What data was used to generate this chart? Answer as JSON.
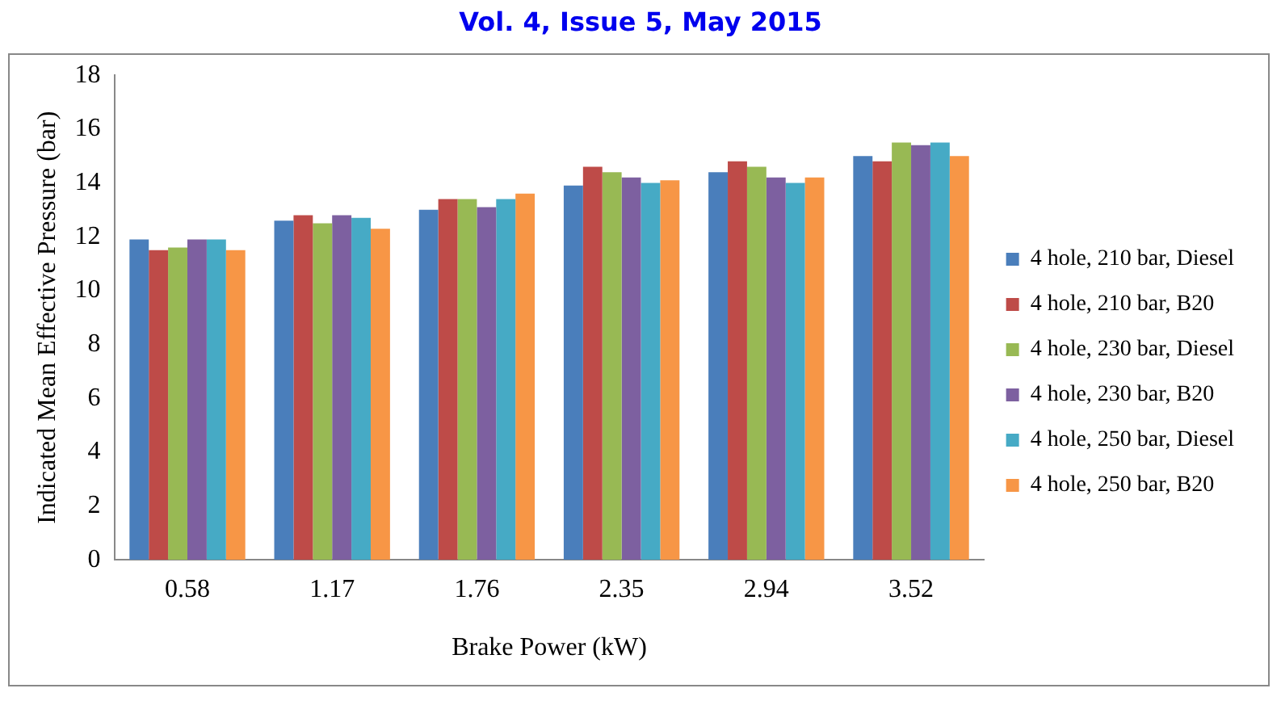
{
  "chart_data": {
    "type": "bar",
    "xlabel": "Brake Power (kW)",
    "ylabel": "Indicated Mean Effective Pressure (bar)",
    "annotations": [
      "Vol. 4, Issue 5, May 2015"
    ],
    "categories": [
      "0.58",
      "1.17",
      "1.76",
      "2.35",
      "2.94",
      "3.52"
    ],
    "series": [
      {
        "name": "4 hole, 210 bar, Diesel",
        "color": "#4a7ebb",
        "values": [
          11.9,
          12.6,
          13.0,
          13.9,
          14.4,
          15.0
        ]
      },
      {
        "name": "4 hole, 210 bar, B20",
        "color": "#be4b48",
        "values": [
          11.5,
          12.8,
          13.4,
          14.6,
          14.8,
          14.8
        ]
      },
      {
        "name": "4 hole, 230 bar, Diesel",
        "color": "#98b954",
        "values": [
          11.6,
          12.5,
          13.4,
          14.4,
          14.6,
          15.5
        ]
      },
      {
        "name": "4 hole, 230 bar, B20",
        "color": "#7d60a0",
        "values": [
          11.9,
          12.8,
          13.1,
          14.2,
          14.2,
          15.4
        ]
      },
      {
        "name": "4 hole, 250 bar, Diesel",
        "color": "#46aac5",
        "values": [
          11.9,
          12.7,
          13.4,
          14.0,
          14.0,
          15.5
        ]
      },
      {
        "name": "4 hole, 250 bar, B20",
        "color": "#f79646",
        "values": [
          11.5,
          12.3,
          13.6,
          14.1,
          14.2,
          15.0
        ]
      }
    ],
    "ylim": [
      0,
      18
    ],
    "yticks": [
      0,
      2,
      4,
      6,
      8,
      10,
      12,
      14,
      16,
      18
    ],
    "grid": false,
    "legend": "right"
  }
}
